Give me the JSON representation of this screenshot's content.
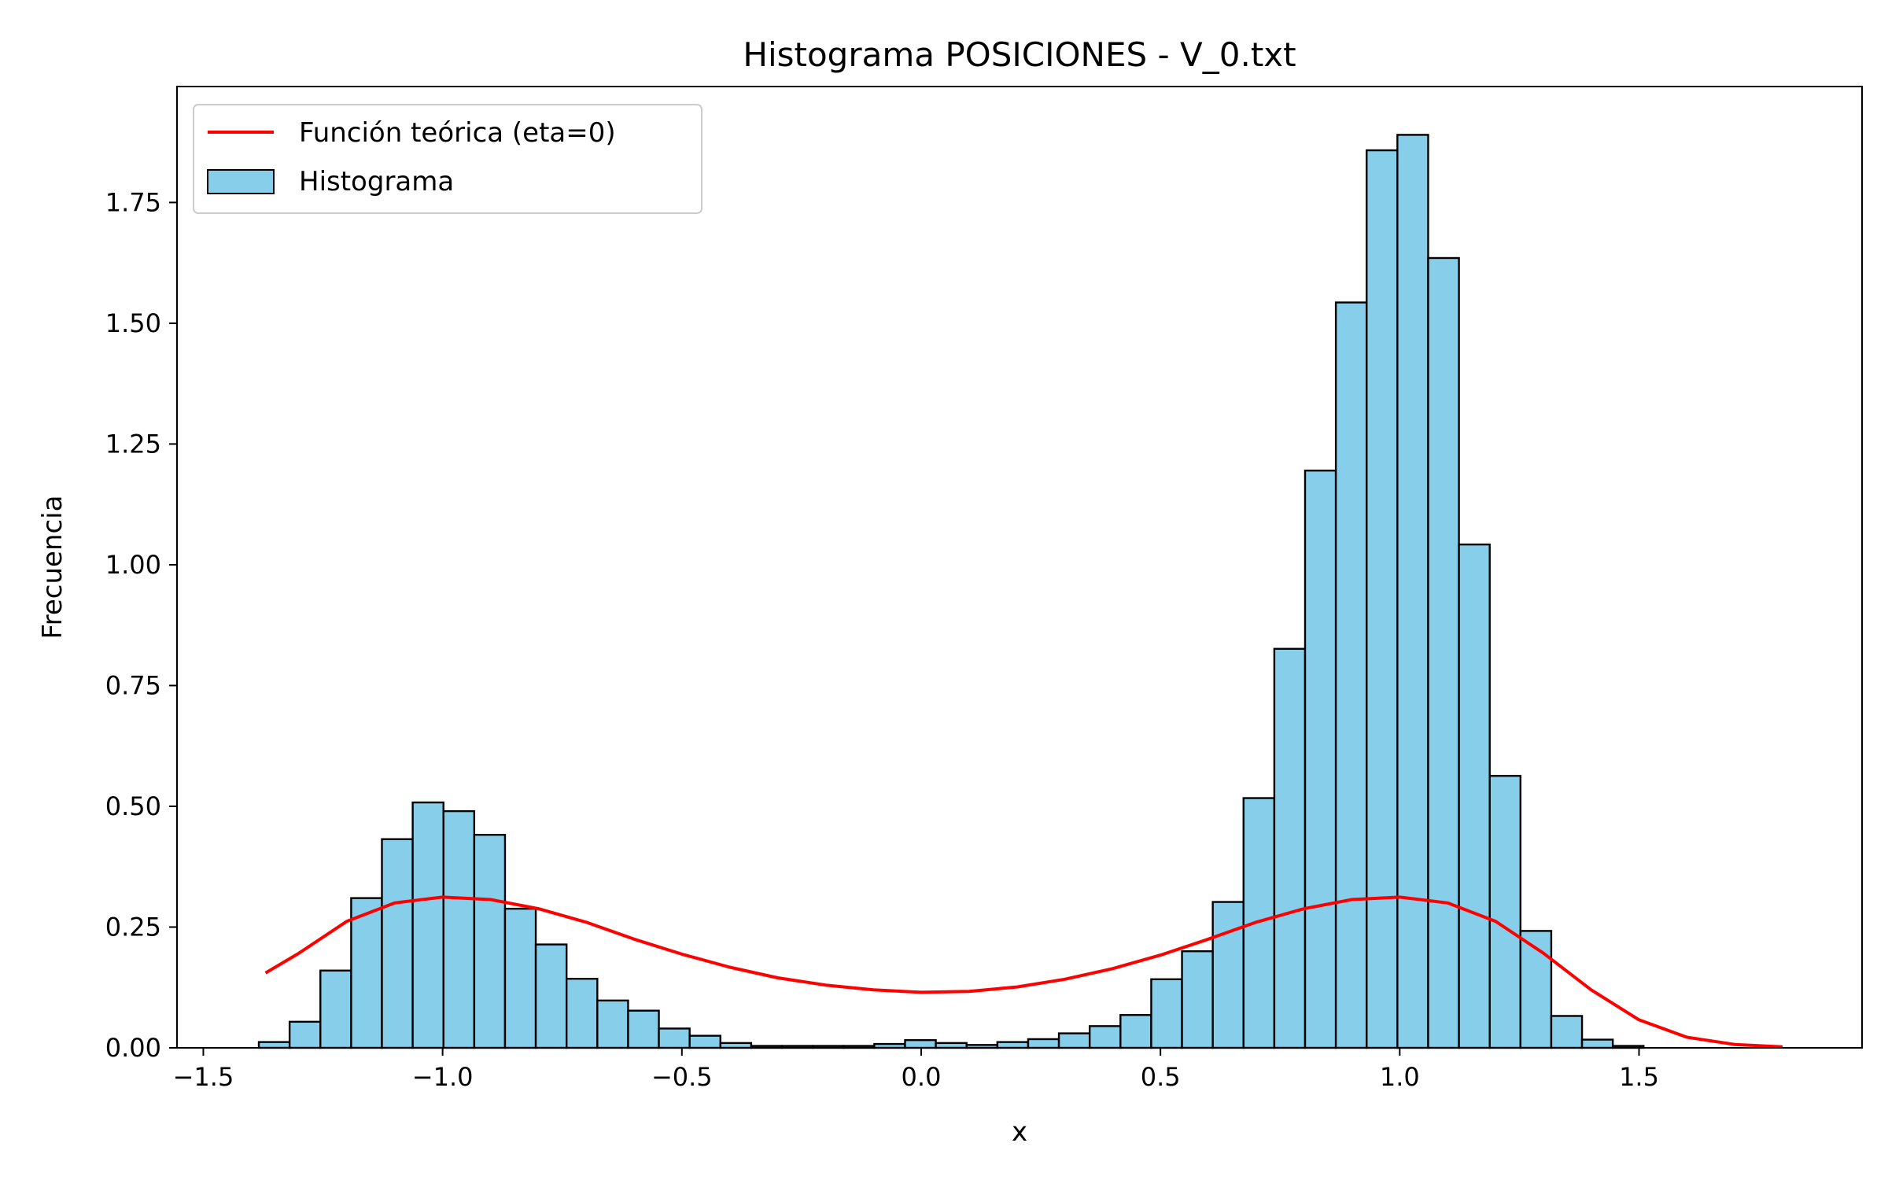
{
  "chart_data": {
    "type": "bar",
    "title": "Histograma POSICIONES - V_0.txt",
    "xlabel": "x",
    "ylabel": "Frecuencia",
    "xlim": [
      -1.555,
      1.966
    ],
    "ylim": [
      0,
      1.99
    ],
    "xticks": [
      -1.5,
      -1.0,
      -0.5,
      0.0,
      0.5,
      1.0,
      1.5
    ],
    "xtick_labels": [
      "−1.5",
      "−1.0",
      "−0.5",
      "0.0",
      "0.5",
      "1.0",
      "1.5"
    ],
    "yticks": [
      0,
      0.25,
      0.5,
      0.75,
      1.0,
      1.25,
      1.5,
      1.75
    ],
    "ytick_labels": [
      "0.00",
      "0.25",
      "0.50",
      "0.75",
      "1.00",
      "1.25",
      "1.50",
      "1.75"
    ],
    "grid": false,
    "legend_position": "top-left",
    "colors": {
      "histogram_fill": "#87ceeb",
      "histogram_edge": "#000000",
      "curve": "#ff0000"
    },
    "histogram": {
      "name": "Histograma",
      "bin_width": 0.0643,
      "bin_start": -1.384,
      "values": [
        0.012,
        0.054,
        0.16,
        0.31,
        0.432,
        0.508,
        0.49,
        0.441,
        0.288,
        0.214,
        0.143,
        0.098,
        0.077,
        0.04,
        0.025,
        0.01,
        0.004,
        0.004,
        0.004,
        0.004,
        0.008,
        0.016,
        0.01,
        0.006,
        0.012,
        0.018,
        0.03,
        0.045,
        0.068,
        0.142,
        0.2,
        0.302,
        0.517,
        0.826,
        1.195,
        1.543,
        1.858,
        1.89,
        1.635,
        1.042,
        0.563,
        0.242,
        0.066,
        0.017,
        0.004
      ]
    },
    "series": [
      {
        "name": "Función teórica (eta=0)",
        "type": "line",
        "x": [
          -1.37,
          -1.3,
          -1.2,
          -1.1,
          -1.0,
          -0.9,
          -0.8,
          -0.7,
          -0.6,
          -0.5,
          -0.4,
          -0.3,
          -0.2,
          -0.1,
          0.0,
          0.1,
          0.2,
          0.3,
          0.4,
          0.5,
          0.6,
          0.7,
          0.8,
          0.9,
          1.0,
          1.1,
          1.2,
          1.3,
          1.4,
          1.5,
          1.6,
          1.7,
          1.8
        ],
        "y": [
          0.155,
          0.196,
          0.262,
          0.3,
          0.312,
          0.307,
          0.288,
          0.26,
          0.225,
          0.194,
          0.167,
          0.145,
          0.13,
          0.12,
          0.115,
          0.117,
          0.126,
          0.142,
          0.164,
          0.192,
          0.225,
          0.26,
          0.288,
          0.307,
          0.312,
          0.3,
          0.262,
          0.196,
          0.12,
          0.058,
          0.022,
          0.007,
          0.002
        ]
      }
    ]
  }
}
